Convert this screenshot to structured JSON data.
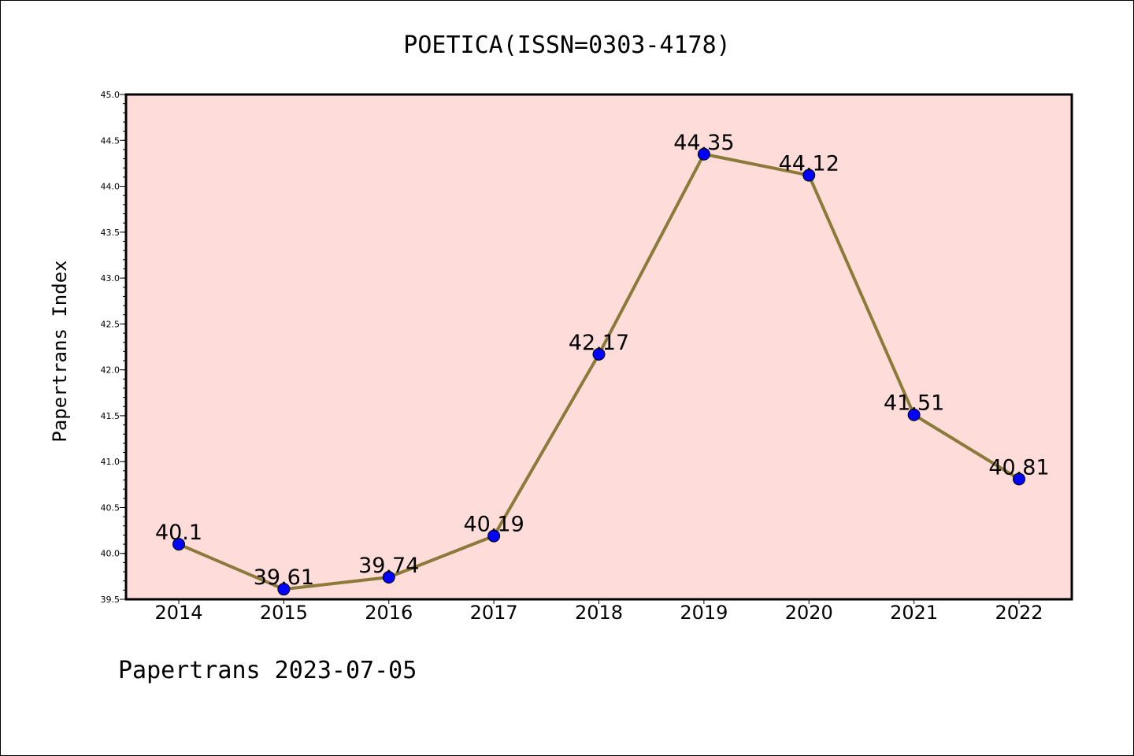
{
  "chart_data": {
    "type": "line",
    "title": "POETICA(ISSN=0303-4178)",
    "xlabel": "",
    "ylabel": "Papertrans Index",
    "categories": [
      "2014",
      "2015",
      "2016",
      "2017",
      "2018",
      "2019",
      "2020",
      "2021",
      "2022"
    ],
    "series": [
      {
        "values": [
          40.1,
          39.61,
          39.74,
          40.19,
          42.17,
          44.35,
          44.12,
          41.51,
          40.81
        ],
        "labels": [
          "40.1",
          "39.61",
          "39.74",
          "40.19",
          "42.17",
          "44.35",
          "44.12",
          "41.51",
          "40.81"
        ],
        "line_color": "#8c7a3a",
        "marker_color": "#0000ff"
      }
    ],
    "ylim": [
      39.5,
      45.0
    ],
    "yticks": [
      "39.5",
      "40.0",
      "40.5",
      "41.0",
      "41.5",
      "42.0",
      "42.5",
      "43.0",
      "43.5",
      "44.0",
      "44.5",
      "45.0"
    ],
    "grid": false,
    "legend": "none",
    "plot_background": "#fddcda"
  },
  "footer": {
    "text": "Papertrans 2023-07-05"
  }
}
